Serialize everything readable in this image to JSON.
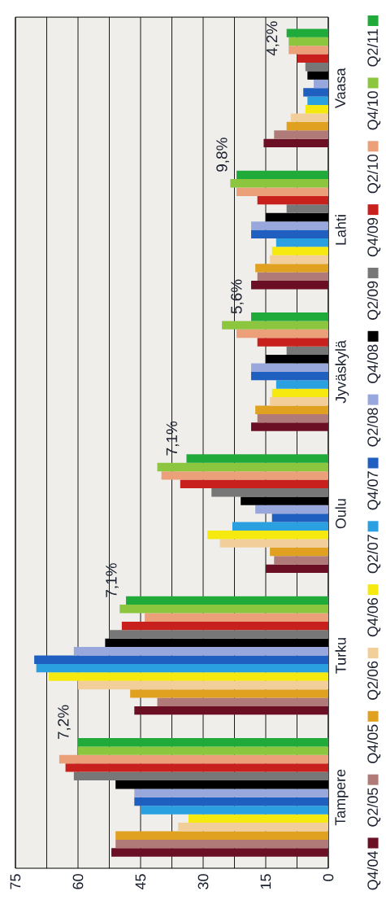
{
  "chart_data": {
    "type": "bar",
    "orientation": "horizontal",
    "categories": [
      "Vaasa",
      "Lahti",
      "Jyväskylä",
      "Oulu",
      "Turku",
      "Tampere"
    ],
    "series": [
      {
        "name": "Q4/04",
        "color": "#6b1024",
        "values": [
          15.5,
          18.5,
          18.5,
          15,
          46.5,
          52
        ]
      },
      {
        "name": "Q2/05",
        "color": "#b07a78",
        "values": [
          13,
          17,
          17,
          13,
          41,
          51
        ]
      },
      {
        "name": "Q4/05",
        "color": "#e0a020",
        "values": [
          10,
          17.5,
          17.5,
          14,
          47.5,
          51
        ]
      },
      {
        "name": "Q2/06",
        "color": "#f2cf9a",
        "values": [
          9,
          14,
          14,
          26,
          60,
          36
        ]
      },
      {
        "name": "Q4/06",
        "color": "#f5e90f",
        "values": [
          5.5,
          13.5,
          13.5,
          29,
          67,
          33.5
        ]
      },
      {
        "name": "Q2/07",
        "color": "#2aa0e0",
        "values": [
          5,
          12.5,
          12.5,
          23,
          70,
          45
        ]
      },
      {
        "name": "Q4/07",
        "color": "#1f5fbf",
        "values": [
          6,
          18.5,
          18.5,
          13.5,
          70.5,
          46.5
        ]
      },
      {
        "name": "Q2/08",
        "color": "#98a8dc",
        "values": [
          3.5,
          18.5,
          18.5,
          17.5,
          61,
          46.5
        ]
      },
      {
        "name": "Q4/08",
        "color": "#000000",
        "values": [
          5,
          15,
          15,
          21,
          53.5,
          51
        ]
      },
      {
        "name": "Q2/09",
        "color": "#777777",
        "values": [
          5.5,
          10,
          10,
          28,
          52.5,
          61
        ]
      },
      {
        "name": "Q4/09",
        "color": "#c8201c",
        "values": [
          7.5,
          17,
          17,
          35.5,
          49.5,
          63
        ]
      },
      {
        "name": "Q2/10",
        "color": "#eba07a",
        "values": [
          9.5,
          22,
          22,
          40,
          44,
          64.5
        ]
      },
      {
        "name": "Q4/10",
        "color": "#8cc63f",
        "values": [
          9.5,
          23.5,
          25.5,
          41,
          50,
          60
        ]
      },
      {
        "name": "Q2/11",
        "color": "#1faa3a",
        "values": [
          10,
          22,
          18.5,
          34,
          48.5,
          60
        ]
      }
    ],
    "xlim": [
      75,
      0
    ],
    "xticks": [
      0,
      {
        "value": 7.5,
        "label": null
      },
      15,
      {
        "value": 22.5,
        "label": null
      },
      30,
      {
        "value": 37.5,
        "label": null
      },
      45,
      {
        "value": 52.5,
        "label": null
      },
      60,
      {
        "value": 67.5,
        "label": null
      },
      75
    ],
    "grid": "x",
    "legend": "right",
    "annotations": [
      "4,2%",
      "9,8%",
      "5,6%",
      "7,1%",
      "7,1%",
      "7,2%"
    ]
  }
}
